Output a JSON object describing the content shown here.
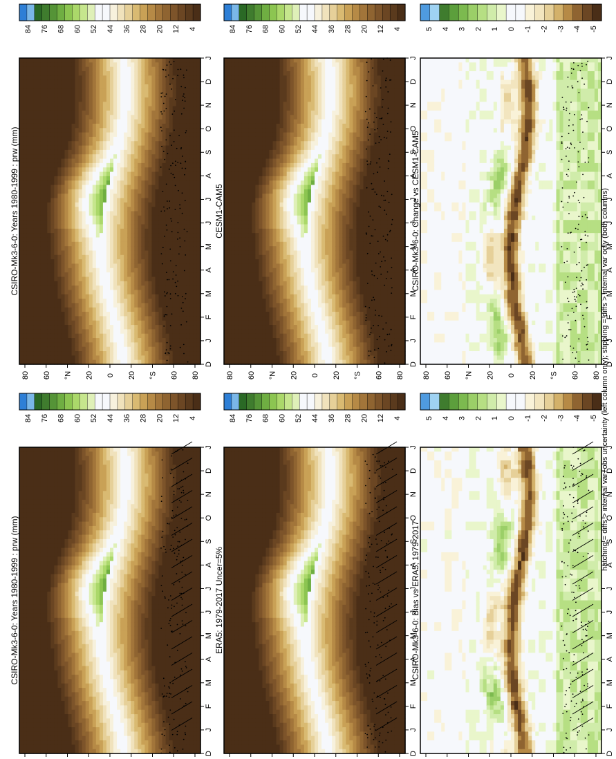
{
  "figure": {
    "footnote": "hatching = diffs > internal var+obs uncertainty (left column only); stippling = diffs > internal var only (both columns)"
  },
  "palettes": {
    "absolute": [
      "#4a2e17",
      "#5a3a1d",
      "#6b4623",
      "#7d542a",
      "#8f6431",
      "#a2753a",
      "#b68a46",
      "#c9a156",
      "#d9ba72",
      "#e6d099",
      "#f0e2bc",
      "#f7f1dd",
      "#f6f8fc",
      "#f6f8fc",
      "#dff0b8",
      "#c6e68d",
      "#abd86a",
      "#8cc551",
      "#6fae42",
      "#559437",
      "#3f7c2e",
      "#2a6925",
      "#7ab7e8",
      "#2e7fd6"
    ],
    "difference": [
      "#4a2e17",
      "#6b4623",
      "#8f6431",
      "#b68a46",
      "#d3b16a",
      "#e6d099",
      "#f2e5bf",
      "#f9f2d8",
      "#f6f8fc",
      "#f6f8fc",
      "#e9f6cb",
      "#d0ecaa",
      "#b6df83",
      "#9bcf68",
      "#7cba4f",
      "#5c9f3c",
      "#3f7c2e",
      "#9fd2f2",
      "#4f9be0"
    ]
  },
  "chart_data": [
    {
      "id": "p1",
      "type": "heatmap",
      "variable": "prw",
      "units": "mm",
      "title": "CSIRO-Mk3-6-0: Years 1980-1999 : prw (mm)",
      "x_tick_labels": [
        "D",
        "J",
        "F",
        "M",
        "A",
        "M",
        "J",
        "J",
        "A",
        "S",
        "O",
        "N",
        "D",
        "J"
      ],
      "y_tick_labels": [
        "80",
        "60",
        "°N",
        "20",
        "0",
        "20",
        "°S",
        "60",
        "80"
      ],
      "colorbar_labels": [
        "84",
        "76",
        "68",
        "60",
        "52",
        "44",
        "36",
        "28",
        "20",
        "12",
        "4"
      ],
      "hatching": true,
      "stippling": true
    },
    {
      "id": "p2",
      "type": "heatmap",
      "variable": "prw",
      "units": "mm",
      "title": "CSIRO-Mk3-6-0: Years 1980-1999 : prw (mm)",
      "x_tick_labels": [
        "D",
        "J",
        "F",
        "M",
        "A",
        "M",
        "J",
        "J",
        "A",
        "S",
        "O",
        "N",
        "D",
        "J"
      ],
      "y_tick_labels": [
        "80",
        "60",
        "°N",
        "20",
        "0",
        "20",
        "°S",
        "60",
        "80"
      ],
      "colorbar_labels": [
        "84",
        "76",
        "68",
        "60",
        "52",
        "44",
        "36",
        "28",
        "20",
        "12",
        "4"
      ],
      "hatching": false,
      "stippling": true
    },
    {
      "id": "p3",
      "type": "heatmap",
      "variable": "prw",
      "units": "mm",
      "title": "ERA5: 1979-2017 Uncer=5%",
      "x_tick_labels": [
        "D",
        "J",
        "F",
        "M",
        "A",
        "M",
        "J",
        "J",
        "A",
        "S",
        "O",
        "N",
        "D",
        "J"
      ],
      "y_tick_labels": [
        "80",
        "60",
        "°N",
        "20",
        "0",
        "20",
        "°S",
        "60",
        "80"
      ],
      "colorbar_labels": [
        "84",
        "76",
        "68",
        "60",
        "52",
        "44",
        "36",
        "28",
        "20",
        "12",
        "4"
      ],
      "hatching": true,
      "stippling": true
    },
    {
      "id": "p4",
      "type": "heatmap",
      "variable": "prw",
      "units": "mm",
      "title": "CESM1-CAM5",
      "x_tick_labels": [
        "D",
        "J",
        "F",
        "M",
        "A",
        "M",
        "J",
        "J",
        "A",
        "S",
        "O",
        "N",
        "D",
        "J"
      ],
      "y_tick_labels": [
        "80",
        "60",
        "°N",
        "20",
        "0",
        "20",
        "°S",
        "60",
        "80"
      ],
      "colorbar_labels": [
        "84",
        "76",
        "68",
        "60",
        "52",
        "44",
        "36",
        "28",
        "20",
        "12",
        "4"
      ],
      "hatching": false,
      "stippling": true
    },
    {
      "id": "p5",
      "type": "heatmap",
      "variable": "prw bias",
      "units": "mm",
      "title": "CSIRO-Mk3-6-0: Bias vs ERA5; 1979-2017",
      "x_tick_labels": [
        "D",
        "J",
        "F",
        "M",
        "A",
        "M",
        "J",
        "J",
        "A",
        "S",
        "O",
        "N",
        "D",
        "J"
      ],
      "y_tick_labels": [
        "80",
        "60",
        "°N",
        "20",
        "0",
        "20",
        "°S",
        "60",
        "80"
      ],
      "colorbar_labels": [
        "5",
        "4",
        "3",
        "2",
        "1",
        "0",
        "-1",
        "-2",
        "-3",
        "-4",
        "-5"
      ],
      "hatching": true,
      "stippling": true
    },
    {
      "id": "p6",
      "type": "heatmap",
      "variable": "prw change",
      "units": "mm",
      "title": "CSIRO-Mk3-6-0: Change vs CESM1-CAM5",
      "x_tick_labels": [
        "D",
        "J",
        "F",
        "M",
        "A",
        "M",
        "J",
        "J",
        "A",
        "S",
        "O",
        "N",
        "D",
        "J"
      ],
      "y_tick_labels": [
        "80",
        "60",
        "°N",
        "20",
        "0",
        "20",
        "°S",
        "60",
        "80"
      ],
      "colorbar_labels": [
        "5",
        "4",
        "3",
        "2",
        "1",
        "0",
        "-1",
        "-2",
        "-3",
        "-4",
        "-5"
      ],
      "hatching": false,
      "stippling": true
    }
  ]
}
